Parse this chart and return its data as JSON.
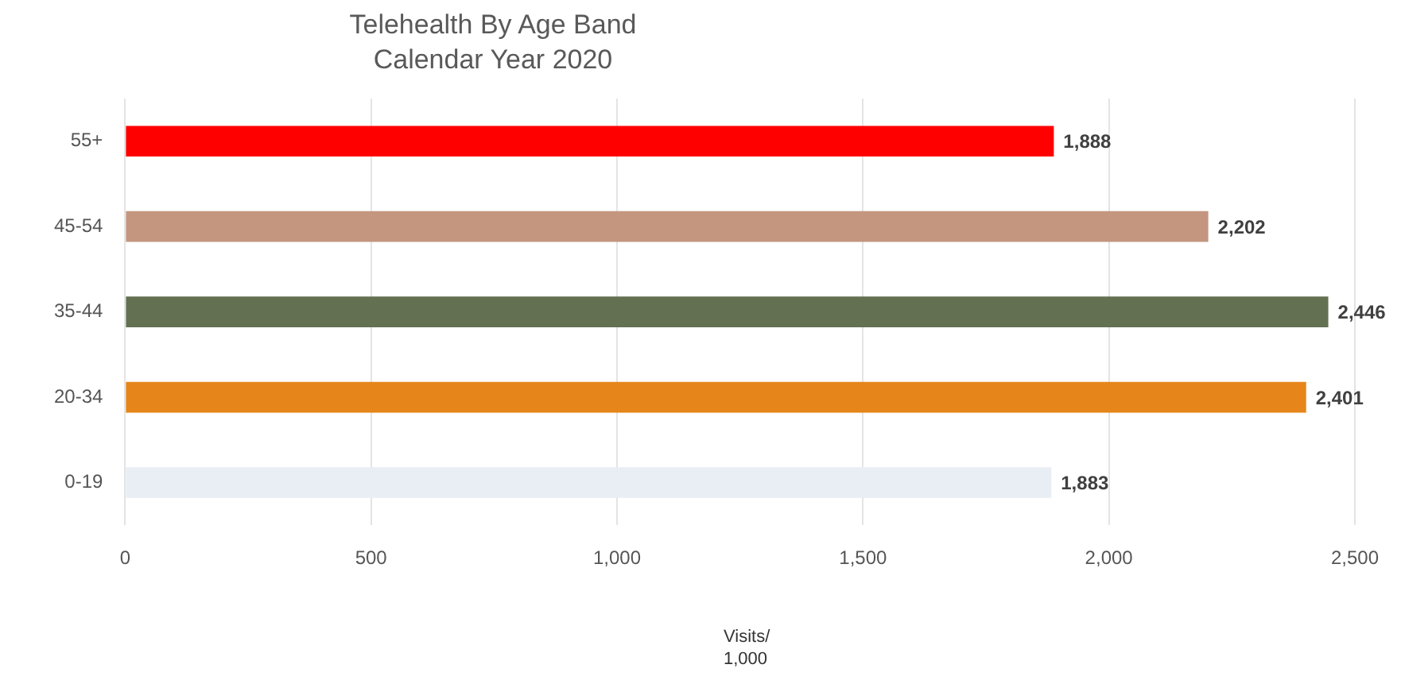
{
  "chart_data": {
    "type": "bar",
    "orientation": "horizontal",
    "title": "Telehealth By Age Band",
    "subtitle": "Calendar Year 2020",
    "xlabel": "Visits/ 1,000",
    "categories": [
      "55+",
      "45-54",
      "35-44",
      "20-34",
      "0-19"
    ],
    "values": [
      1888,
      2202,
      2446,
      2401,
      1883
    ],
    "colors": [
      "#ff0000",
      "#c4967f",
      "#637052",
      "#e6851a",
      "#e9eef5"
    ],
    "xlim": [
      0,
      2500
    ],
    "xticks": [
      0,
      {
        "value": 500,
        "label": "500"
      },
      {
        "value": 1000,
        "label": "1,000"
      },
      {
        "value": 1500,
        "label": "1,500"
      },
      {
        "value": 2000,
        "label": "2,000"
      },
      {
        "value": 2500,
        "label": "2,500"
      }
    ],
    "value_labels": [
      "1,888",
      "2,202",
      "2,446",
      "2,401",
      "1,883"
    ],
    "grid": "x",
    "legend": false
  }
}
